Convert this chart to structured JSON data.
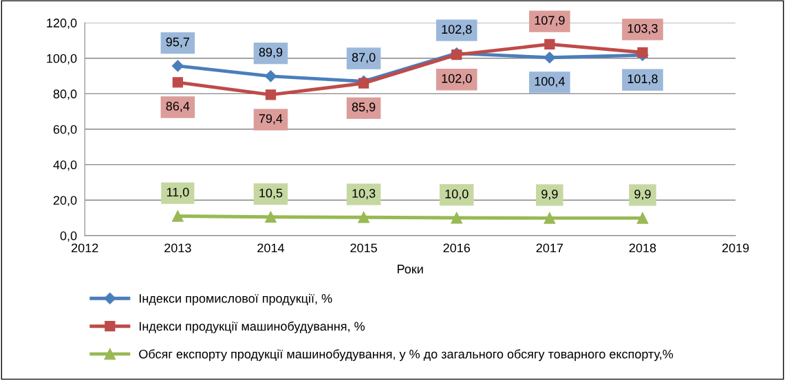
{
  "chart_data": {
    "type": "line",
    "xlabel": "Роки",
    "x": [
      2013,
      2014,
      2015,
      2016,
      2017,
      2018
    ],
    "series": [
      {
        "name": "Індекси промислової продукції, %",
        "color": "#4a7ebb",
        "marker": "diamond",
        "values": [
          95.7,
          89.9,
          87.0,
          102.8,
          100.4,
          101.8
        ],
        "value_labels": [
          "95,7",
          "89,9",
          "87,0",
          "102,8",
          "100,4",
          "101,8"
        ]
      },
      {
        "name": "Індекси продукції машинобудування, %",
        "color": "#be4b48",
        "marker": "square",
        "values": [
          86.4,
          79.4,
          85.9,
          102.0,
          107.9,
          103.3
        ],
        "value_labels": [
          "86,4",
          "79,4",
          "85,9",
          "102,0",
          "107,9",
          "103,3"
        ]
      },
      {
        "name": "Обсяг експорту продукції машинобудування, у % до загального обсягу товарного експорту,%",
        "color": "#98b954",
        "marker": "triangle",
        "values": [
          11.0,
          10.5,
          10.3,
          10.0,
          9.9,
          9.9
        ],
        "value_labels": [
          "11,0",
          "10,5",
          "10,3",
          "10,0",
          "9,9",
          "9,9"
        ]
      }
    ],
    "xlim": [
      2012,
      2019
    ],
    "xticks": [
      2012,
      2013,
      2014,
      2015,
      2016,
      2017,
      2018,
      2019
    ],
    "ylim": [
      0,
      120
    ],
    "yticks": [
      {
        "value": 0,
        "label": "0,0"
      },
      {
        "value": 20,
        "label": "20,0"
      },
      {
        "value": 40,
        "label": "40,0"
      },
      {
        "value": 60,
        "label": "60,0"
      },
      {
        "value": 80,
        "label": "80,0"
      },
      {
        "value": 100,
        "label": "100,0"
      },
      {
        "value": 120,
        "label": "120,0"
      }
    ],
    "grid": "y",
    "legend": "bottom",
    "line_style": "solid"
  }
}
